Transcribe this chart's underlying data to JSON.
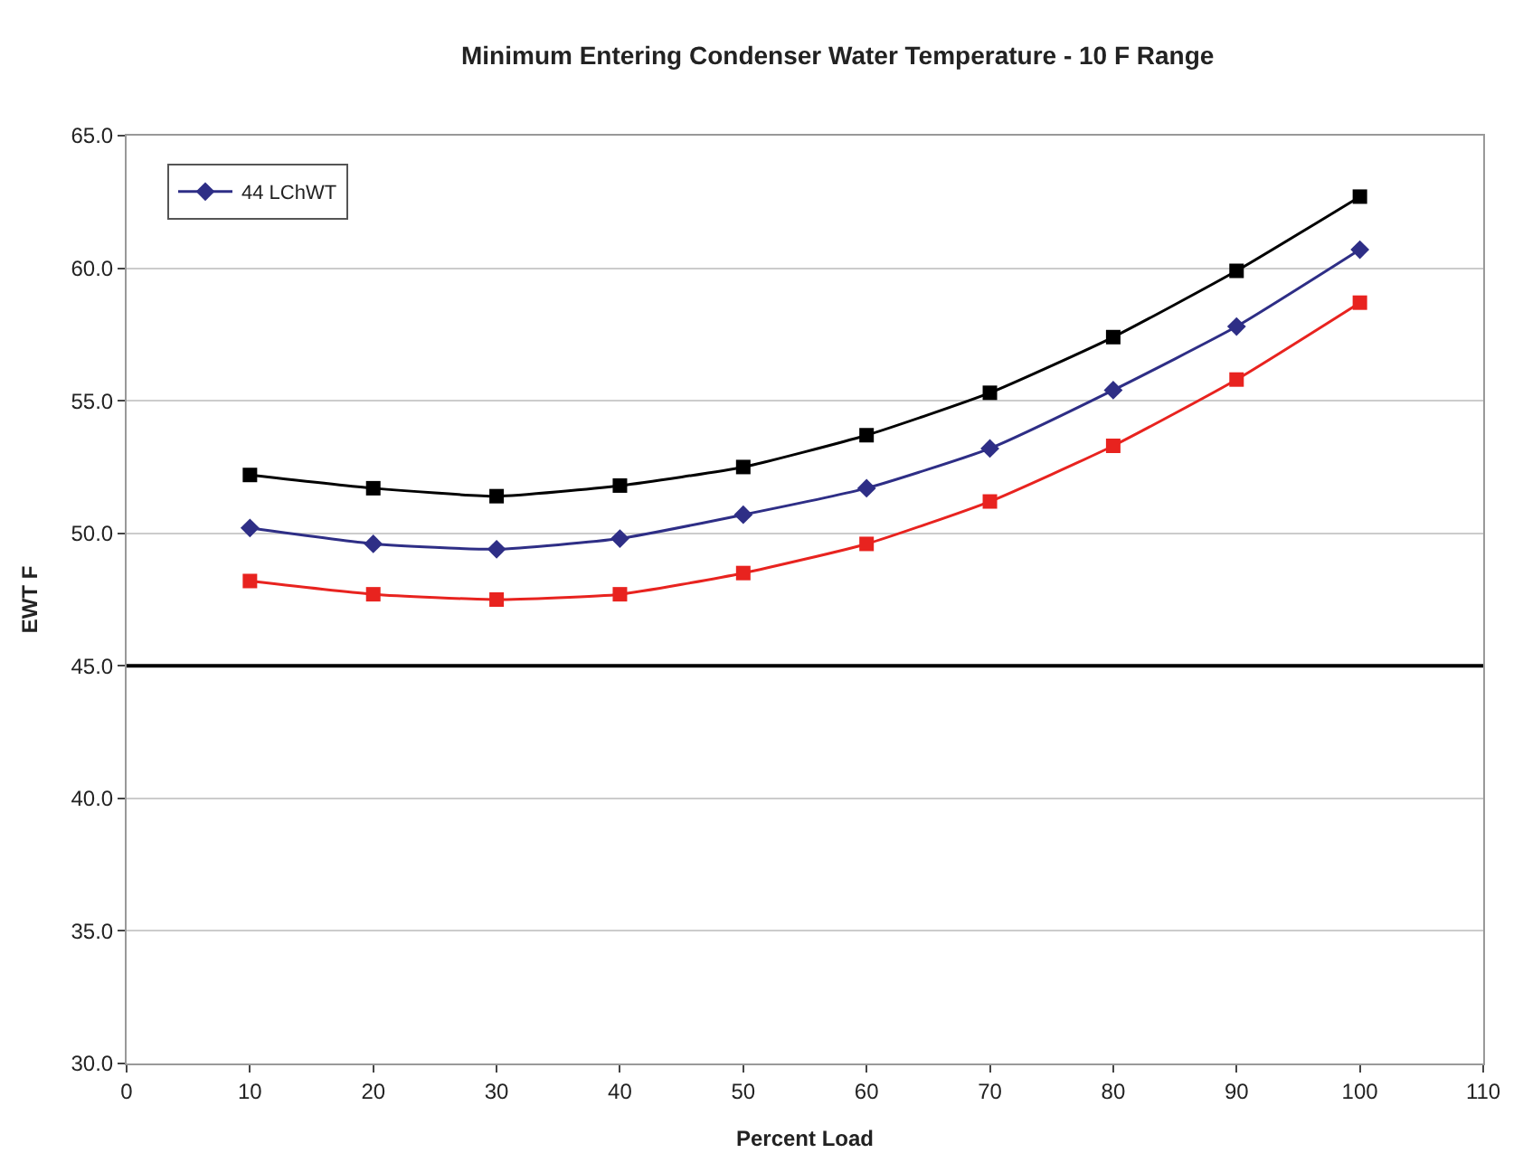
{
  "chart_data": {
    "type": "line",
    "title": "Minimum Entering Condenser Water Temperature - 10 F Range",
    "xlabel": "Percent Load",
    "ylabel": "EWT F",
    "x": [
      10,
      20,
      30,
      40,
      50,
      60,
      70,
      80,
      90,
      100
    ],
    "series": [
      {
        "color": "#000000",
        "marker": "square",
        "values": [
          52.2,
          51.7,
          51.4,
          51.8,
          52.5,
          53.7,
          55.3,
          57.4,
          59.9,
          62.7
        ]
      },
      {
        "name": "44 LChWT",
        "color": "#2e2e86",
        "marker": "diamond",
        "values": [
          50.2,
          49.6,
          49.4,
          49.8,
          50.7,
          51.7,
          53.2,
          55.4,
          57.8,
          60.7
        ]
      },
      {
        "color": "#e8231f",
        "marker": "square",
        "values": [
          48.2,
          47.7,
          47.5,
          47.7,
          48.5,
          49.6,
          51.2,
          53.3,
          55.8,
          58.7
        ]
      }
    ],
    "xlim": [
      0,
      110
    ],
    "xticks": [
      0,
      10,
      20,
      30,
      40,
      50,
      60,
      70,
      80,
      90,
      100,
      110
    ],
    "ylim": [
      30,
      65
    ],
    "yticks": [
      {
        "value": 30,
        "label": "30.0"
      },
      {
        "value": 35,
        "label": "35.0"
      },
      {
        "value": 40,
        "label": "40.0"
      },
      {
        "value": 45,
        "label": "45.0"
      },
      {
        "value": 50,
        "label": "50.0"
      },
      {
        "value": 55,
        "label": "55.0"
      },
      {
        "value": 60,
        "label": "60.0"
      },
      {
        "value": 65,
        "label": "65.0"
      }
    ],
    "ref_lines": [
      {
        "axis": "y",
        "value": 45,
        "color": "#000000"
      }
    ],
    "grid": "y",
    "legend": "top left",
    "line_style": "solid"
  }
}
